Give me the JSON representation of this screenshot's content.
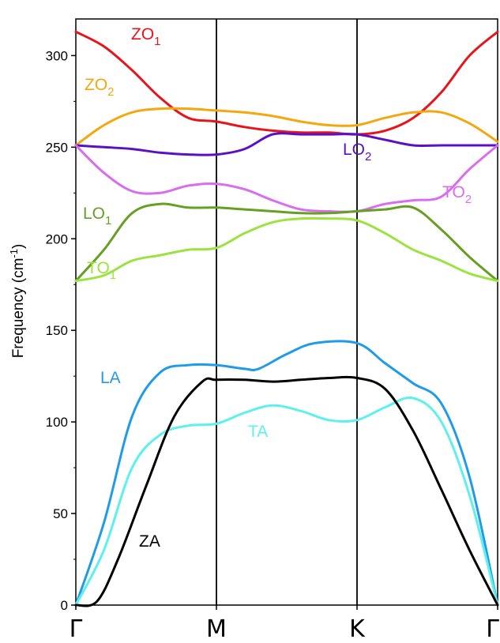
{
  "chart_data": {
    "type": "line",
    "ylabel_main": "Frequency (cm",
    "ylabel_sup": "-1",
    "ylabel_close": ")",
    "ylim": [
      0,
      320
    ],
    "yticks": [
      0,
      50,
      100,
      150,
      200,
      250,
      300
    ],
    "xlim": [
      0,
      3
    ],
    "xticks": [
      {
        "pos": 0,
        "label": "Γ"
      },
      {
        "pos": 1,
        "label": "M"
      },
      {
        "pos": 2,
        "label": "K"
      },
      {
        "pos": 3,
        "label": "Γ"
      }
    ],
    "grid": false,
    "legend": "none",
    "series": [
      {
        "name": "ZO",
        "sub": "1",
        "color": "#e8141c",
        "points": [
          [
            0,
            313
          ],
          [
            0.2,
            305
          ],
          [
            0.4,
            292
          ],
          [
            0.6,
            277
          ],
          [
            0.8,
            266
          ],
          [
            1,
            264
          ],
          [
            1.2,
            261
          ],
          [
            1.4,
            259
          ],
          [
            1.6,
            258
          ],
          [
            1.8,
            258
          ],
          [
            2,
            257
          ],
          [
            2.2,
            259
          ],
          [
            2.4,
            266
          ],
          [
            2.6,
            280
          ],
          [
            2.8,
            300
          ],
          [
            3,
            313
          ]
        ]
      },
      {
        "name": "ZO",
        "sub": "2",
        "color": "#f5a70f",
        "points": [
          [
            0,
            251
          ],
          [
            0.2,
            262
          ],
          [
            0.4,
            269
          ],
          [
            0.6,
            271
          ],
          [
            0.8,
            271
          ],
          [
            1,
            270
          ],
          [
            1.2,
            269
          ],
          [
            1.4,
            267
          ],
          [
            1.6,
            264
          ],
          [
            1.8,
            262
          ],
          [
            2,
            262
          ],
          [
            2.2,
            266
          ],
          [
            2.4,
            269
          ],
          [
            2.6,
            269
          ],
          [
            2.8,
            263
          ],
          [
            3,
            253
          ]
        ]
      },
      {
        "name": "LO",
        "sub": "2",
        "color": "#5a11c4",
        "points": [
          [
            0,
            251
          ],
          [
            0.2,
            250
          ],
          [
            0.4,
            249
          ],
          [
            0.6,
            247
          ],
          [
            0.8,
            246
          ],
          [
            1,
            246
          ],
          [
            1.2,
            249
          ],
          [
            1.4,
            257
          ],
          [
            1.6,
            257
          ],
          [
            1.8,
            257
          ],
          [
            2,
            257
          ],
          [
            2.2,
            254
          ],
          [
            2.4,
            251
          ],
          [
            2.6,
            251
          ],
          [
            2.8,
            251
          ],
          [
            3,
            251
          ]
        ]
      },
      {
        "name": "TO",
        "sub": "2",
        "color": "#d86ded",
        "points": [
          [
            0,
            251
          ],
          [
            0.2,
            236
          ],
          [
            0.4,
            226
          ],
          [
            0.6,
            225
          ],
          [
            0.8,
            229
          ],
          [
            1,
            230
          ],
          [
            1.2,
            227
          ],
          [
            1.4,
            221
          ],
          [
            1.6,
            216
          ],
          [
            1.8,
            215
          ],
          [
            2,
            215
          ],
          [
            2.2,
            219
          ],
          [
            2.4,
            221
          ],
          [
            2.6,
            223
          ],
          [
            2.8,
            238
          ],
          [
            3,
            251
          ]
        ]
      },
      {
        "name": "LO",
        "sub": "1",
        "color": "#65a024",
        "points": [
          [
            0,
            177
          ],
          [
            0.2,
            194
          ],
          [
            0.4,
            214
          ],
          [
            0.6,
            219
          ],
          [
            0.8,
            217
          ],
          [
            1,
            217
          ],
          [
            1.2,
            216
          ],
          [
            1.4,
            215
          ],
          [
            1.6,
            214
          ],
          [
            1.8,
            214
          ],
          [
            2,
            215
          ],
          [
            2.2,
            216
          ],
          [
            2.4,
            217
          ],
          [
            2.6,
            205
          ],
          [
            2.8,
            190
          ],
          [
            3,
            177
          ]
        ]
      },
      {
        "name": "TO",
        "sub": "1",
        "color": "#9be33e",
        "points": [
          [
            0,
            177
          ],
          [
            0.2,
            180
          ],
          [
            0.4,
            188
          ],
          [
            0.6,
            191
          ],
          [
            0.8,
            194
          ],
          [
            1,
            195
          ],
          [
            1.2,
            203
          ],
          [
            1.4,
            209
          ],
          [
            1.6,
            211
          ],
          [
            1.8,
            211
          ],
          [
            2,
            210
          ],
          [
            2.2,
            203
          ],
          [
            2.4,
            194
          ],
          [
            2.6,
            188
          ],
          [
            2.8,
            181
          ],
          [
            3,
            177
          ]
        ]
      },
      {
        "name": "LA",
        "sub": "",
        "color": "#1f9be8",
        "points": [
          [
            0,
            0
          ],
          [
            0.2,
            45
          ],
          [
            0.4,
            103
          ],
          [
            0.6,
            127
          ],
          [
            0.8,
            131
          ],
          [
            1,
            131
          ],
          [
            1.2,
            129
          ],
          [
            1.3,
            129
          ],
          [
            1.5,
            137
          ],
          [
            1.7,
            143
          ],
          [
            2,
            143
          ],
          [
            2.2,
            132
          ],
          [
            2.4,
            121
          ],
          [
            2.6,
            110
          ],
          [
            2.8,
            70
          ],
          [
            3,
            0
          ]
        ]
      },
      {
        "name": "TA",
        "sub": "",
        "color": "#5ef0ec",
        "points": [
          [
            0,
            0
          ],
          [
            0.2,
            30
          ],
          [
            0.4,
            75
          ],
          [
            0.6,
            93
          ],
          [
            0.8,
            98
          ],
          [
            1,
            99
          ],
          [
            1.2,
            105
          ],
          [
            1.4,
            109
          ],
          [
            1.6,
            106
          ],
          [
            1.8,
            101
          ],
          [
            2,
            101
          ],
          [
            2.2,
            108
          ],
          [
            2.4,
            113
          ],
          [
            2.6,
            100
          ],
          [
            2.8,
            60
          ],
          [
            3,
            0
          ]
        ]
      },
      {
        "name": "ZA",
        "sub": "",
        "color": "#000000",
        "points": [
          [
            0,
            0
          ],
          [
            0.15,
            2
          ],
          [
            0.3,
            25
          ],
          [
            0.5,
            65
          ],
          [
            0.7,
            103
          ],
          [
            0.9,
            122
          ],
          [
            1,
            123
          ],
          [
            1.2,
            123
          ],
          [
            1.4,
            122
          ],
          [
            1.6,
            123
          ],
          [
            1.8,
            124
          ],
          [
            2,
            124
          ],
          [
            2.2,
            118
          ],
          [
            2.4,
            95
          ],
          [
            2.6,
            63
          ],
          [
            2.8,
            30
          ],
          [
            3,
            0
          ]
        ]
      }
    ]
  }
}
